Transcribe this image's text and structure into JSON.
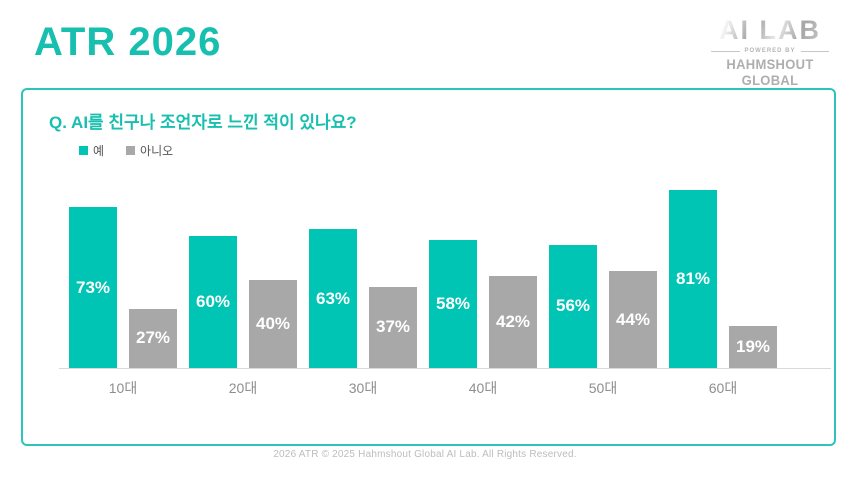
{
  "header": {
    "title": "ATR 2026"
  },
  "logo": {
    "brand": "AI LAB",
    "powered_by": "POWERED BY",
    "company": "HAHMSHOUT GLOBAL"
  },
  "card": {
    "question": "Q. AI를 친구나 조언자로 느낀 적이 있나요?",
    "legend": [
      {
        "key": "yes",
        "label": "예",
        "color": "#00C4B4"
      },
      {
        "key": "no",
        "label": "아니오",
        "color": "#A8A8A8"
      }
    ]
  },
  "footer": {
    "text": "2026 ATR © 2025 Hahmshout Global AI Lab. All Rights Reserved."
  },
  "colors": {
    "accent": "#17BFAF",
    "card_border": "#2BC5BC",
    "axis_line": "#D9D9D9",
    "axis_label_text": "#8E8E8E",
    "legend_text": "#555555",
    "footer_text": "#BDBDBD",
    "bar_value_text": "#FFFFFF"
  },
  "chart_data": {
    "type": "bar",
    "title": "Q. AI를 친구나 조언자로 느낀 적이 있나요?",
    "categories": [
      "10대",
      "20대",
      "30대",
      "40대",
      "50대",
      "60대"
    ],
    "series": [
      {
        "key": "yes",
        "name": "예",
        "color": "#00C4B4",
        "values": [
          73,
          60,
          63,
          58,
          56,
          81
        ]
      },
      {
        "key": "no",
        "name": "아니오",
        "color": "#A8A8A8",
        "values": [
          27,
          40,
          37,
          42,
          44,
          19
        ]
      }
    ],
    "value_suffix": "%",
    "ylim": [
      0,
      100
    ],
    "grid": false,
    "legend_position": "top-left",
    "value_labels": "inside-center"
  }
}
